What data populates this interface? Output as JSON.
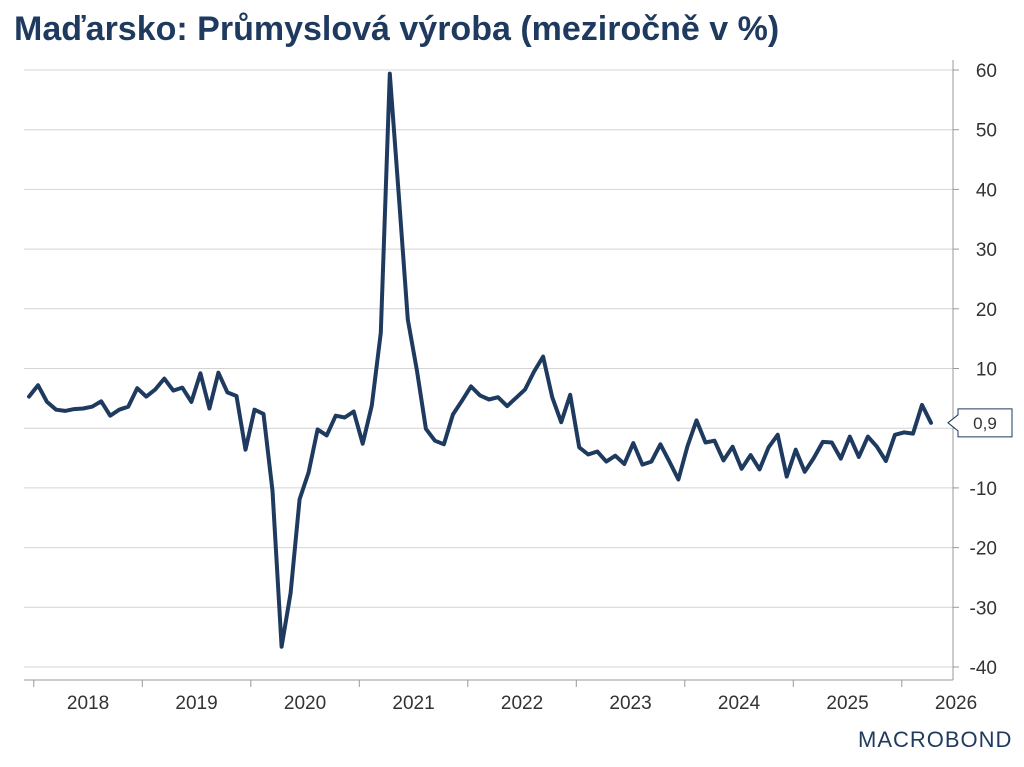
{
  "title": "Maďarsko: Průmyslová výroba (meziročně v %)",
  "logo_text": "MACROBOND",
  "colors": {
    "line": "#1f3a5f",
    "grid": "#d4d4d4",
    "axis": "#999999"
  },
  "chart_data": {
    "type": "line",
    "title": "Maďarsko: Průmyslová výroba (meziročně v %)",
    "xlabel": "",
    "ylabel": "",
    "ylim": [
      -40,
      60
    ],
    "y_ticks": [
      60,
      50,
      40,
      30,
      20,
      10,
      0,
      -10,
      -20,
      -30,
      -40
    ],
    "y_tick_labels": [
      "60",
      "50",
      "40",
      "30",
      "20",
      "10",
      "",
      "-10",
      "-20",
      "-30",
      "-40"
    ],
    "x_tick_labels": [
      "2018",
      "2019",
      "2020",
      "2021",
      "2022",
      "2023",
      "2024",
      "2025",
      "2026"
    ],
    "grid": true,
    "y_axis_side": "right",
    "last_value_label": "0,9",
    "series": [
      {
        "values": [
          5.3,
          7.2,
          4.4,
          3.1,
          2.9,
          3.2,
          3.3,
          3.6,
          4.5,
          2.1,
          3.1,
          3.6,
          6.7,
          5.3,
          6.5,
          8.3,
          6.3,
          6.8,
          4.4,
          9.2,
          3.3,
          9.3,
          6.0,
          5.4,
          -3.6,
          3.1,
          2.4,
          -10.5,
          -36.6,
          -27.6,
          -11.9,
          -7.4,
          -0.2,
          -1.2,
          2.1,
          1.8,
          2.8,
          -2.6,
          3.8,
          16.0,
          59.4,
          39.0,
          18.2,
          9.7,
          -0.1,
          -2.1,
          -2.7,
          2.3,
          4.6,
          7.0,
          5.5,
          4.8,
          5.2,
          3.7,
          5.1,
          6.5,
          9.5,
          12.0,
          5.2,
          1.0,
          5.6,
          -3.2,
          -4.4,
          -3.9,
          -5.6,
          -4.6,
          -6.0,
          -2.5,
          -6.1,
          -5.6,
          -2.7,
          -5.6,
          -8.6,
          -3.0,
          1.3,
          -2.4,
          -2.1,
          -5.4,
          -3.1,
          -6.8,
          -4.5,
          -6.9,
          -3.2,
          -1.1,
          -8.1,
          -3.6,
          -7.3,
          -5.0,
          -2.3,
          -2.4,
          -5.1,
          -1.4,
          -4.8,
          -1.4,
          -3.1,
          -5.5,
          -1.1,
          -0.7,
          -0.9,
          3.9,
          0.9
        ]
      }
    ]
  }
}
